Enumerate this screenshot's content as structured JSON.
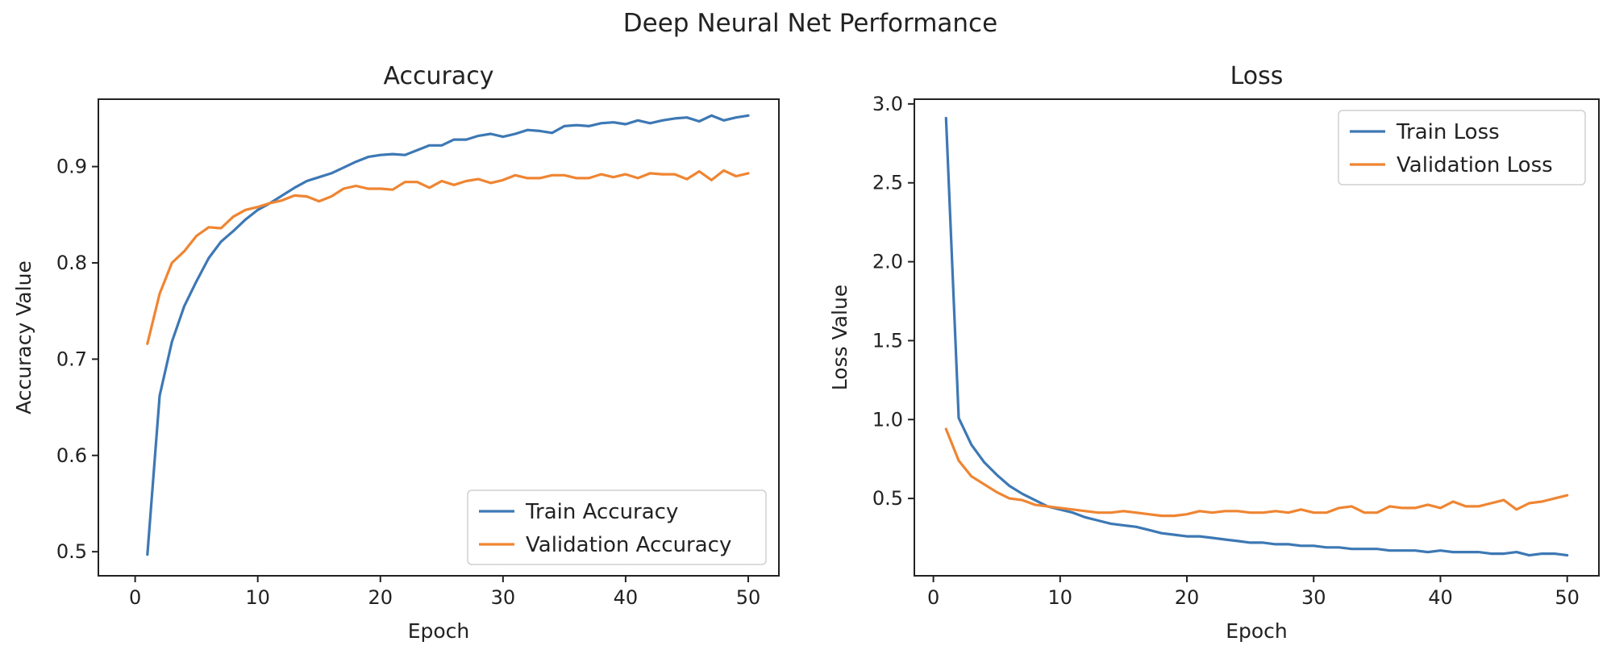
{
  "suptitle": "Deep Neural Net Performance",
  "chart_data": [
    {
      "type": "line",
      "title": "Accuracy",
      "xlabel": "Epoch",
      "ylabel": "Accuracy Value",
      "xlim": [
        -3.0,
        52.5
      ],
      "ylim": [
        0.475,
        0.97
      ],
      "xticks": [
        0,
        10,
        20,
        30,
        40,
        50
      ],
      "yticks": [
        0.5,
        0.6,
        0.7,
        0.8,
        0.9
      ],
      "ytick_labels": [
        "0.5",
        "0.6",
        "0.7",
        "0.8",
        "0.9"
      ],
      "legend_position": "lower-right",
      "x": [
        1,
        2,
        3,
        4,
        5,
        6,
        7,
        8,
        9,
        10,
        11,
        12,
        13,
        14,
        15,
        16,
        17,
        18,
        19,
        20,
        21,
        22,
        23,
        24,
        25,
        26,
        27,
        28,
        29,
        30,
        31,
        32,
        33,
        34,
        35,
        36,
        37,
        38,
        39,
        40,
        41,
        42,
        43,
        44,
        45,
        46,
        47,
        48,
        49,
        50
      ],
      "series": [
        {
          "name": "Train Accuracy",
          "color": "#3d78b4",
          "values": [
            0.497,
            0.662,
            0.718,
            0.755,
            0.781,
            0.805,
            0.822,
            0.833,
            0.845,
            0.855,
            0.862,
            0.87,
            0.878,
            0.885,
            0.889,
            0.893,
            0.899,
            0.905,
            0.91,
            0.912,
            0.913,
            0.912,
            0.917,
            0.922,
            0.922,
            0.928,
            0.928,
            0.932,
            0.934,
            0.931,
            0.934,
            0.938,
            0.937,
            0.935,
            0.942,
            0.943,
            0.942,
            0.945,
            0.946,
            0.944,
            0.948,
            0.945,
            0.948,
            0.95,
            0.951,
            0.947,
            0.953,
            0.948,
            0.951,
            0.953
          ]
        },
        {
          "name": "Validation Accuracy",
          "color": "#ef8532",
          "values": [
            0.716,
            0.768,
            0.8,
            0.812,
            0.828,
            0.837,
            0.836,
            0.848,
            0.855,
            0.858,
            0.862,
            0.865,
            0.87,
            0.869,
            0.864,
            0.869,
            0.877,
            0.88,
            0.877,
            0.877,
            0.876,
            0.884,
            0.884,
            0.878,
            0.885,
            0.881,
            0.885,
            0.887,
            0.883,
            0.886,
            0.891,
            0.888,
            0.888,
            0.891,
            0.891,
            0.888,
            0.888,
            0.892,
            0.889,
            0.892,
            0.888,
            0.893,
            0.892,
            0.892,
            0.887,
            0.895,
            0.886,
            0.896,
            0.89,
            0.893
          ]
        }
      ]
    },
    {
      "type": "line",
      "title": "Loss",
      "xlabel": "Epoch",
      "ylabel": "Loss Value",
      "xlim": [
        -1.5,
        52.5
      ],
      "ylim": [
        0.01,
        3.03
      ],
      "xticks": [
        0,
        10,
        20,
        30,
        40,
        50
      ],
      "yticks": [
        0.5,
        1.0,
        1.5,
        2.0,
        2.5,
        3.0
      ],
      "ytick_labels": [
        "0.5",
        "1.0",
        "1.5",
        "2.0",
        "2.5",
        "3.0"
      ],
      "legend_position": "upper-right",
      "x": [
        1,
        2,
        3,
        4,
        5,
        6,
        7,
        8,
        9,
        10,
        11,
        12,
        13,
        14,
        15,
        16,
        17,
        18,
        19,
        20,
        21,
        22,
        23,
        24,
        25,
        26,
        27,
        28,
        29,
        30,
        31,
        32,
        33,
        34,
        35,
        36,
        37,
        38,
        39,
        40,
        41,
        42,
        43,
        44,
        45,
        46,
        47,
        48,
        49,
        50
      ],
      "series": [
        {
          "name": "Train Loss",
          "color": "#3d78b4",
          "values": [
            2.91,
            1.01,
            0.84,
            0.73,
            0.65,
            0.58,
            0.53,
            0.49,
            0.45,
            0.43,
            0.41,
            0.38,
            0.36,
            0.34,
            0.33,
            0.32,
            0.3,
            0.28,
            0.27,
            0.26,
            0.26,
            0.25,
            0.24,
            0.23,
            0.22,
            0.22,
            0.21,
            0.21,
            0.2,
            0.2,
            0.19,
            0.19,
            0.18,
            0.18,
            0.18,
            0.17,
            0.17,
            0.17,
            0.16,
            0.17,
            0.16,
            0.16,
            0.16,
            0.15,
            0.15,
            0.16,
            0.14,
            0.15,
            0.15,
            0.14
          ]
        },
        {
          "name": "Validation Loss",
          "color": "#ef8532",
          "values": [
            0.94,
            0.74,
            0.64,
            0.59,
            0.54,
            0.5,
            0.49,
            0.46,
            0.45,
            0.44,
            0.43,
            0.42,
            0.41,
            0.41,
            0.42,
            0.41,
            0.4,
            0.39,
            0.39,
            0.4,
            0.42,
            0.41,
            0.42,
            0.42,
            0.41,
            0.41,
            0.42,
            0.41,
            0.43,
            0.41,
            0.41,
            0.44,
            0.45,
            0.41,
            0.41,
            0.45,
            0.44,
            0.44,
            0.46,
            0.44,
            0.48,
            0.45,
            0.45,
            0.47,
            0.49,
            0.43,
            0.47,
            0.48,
            0.5,
            0.52
          ]
        }
      ]
    }
  ]
}
